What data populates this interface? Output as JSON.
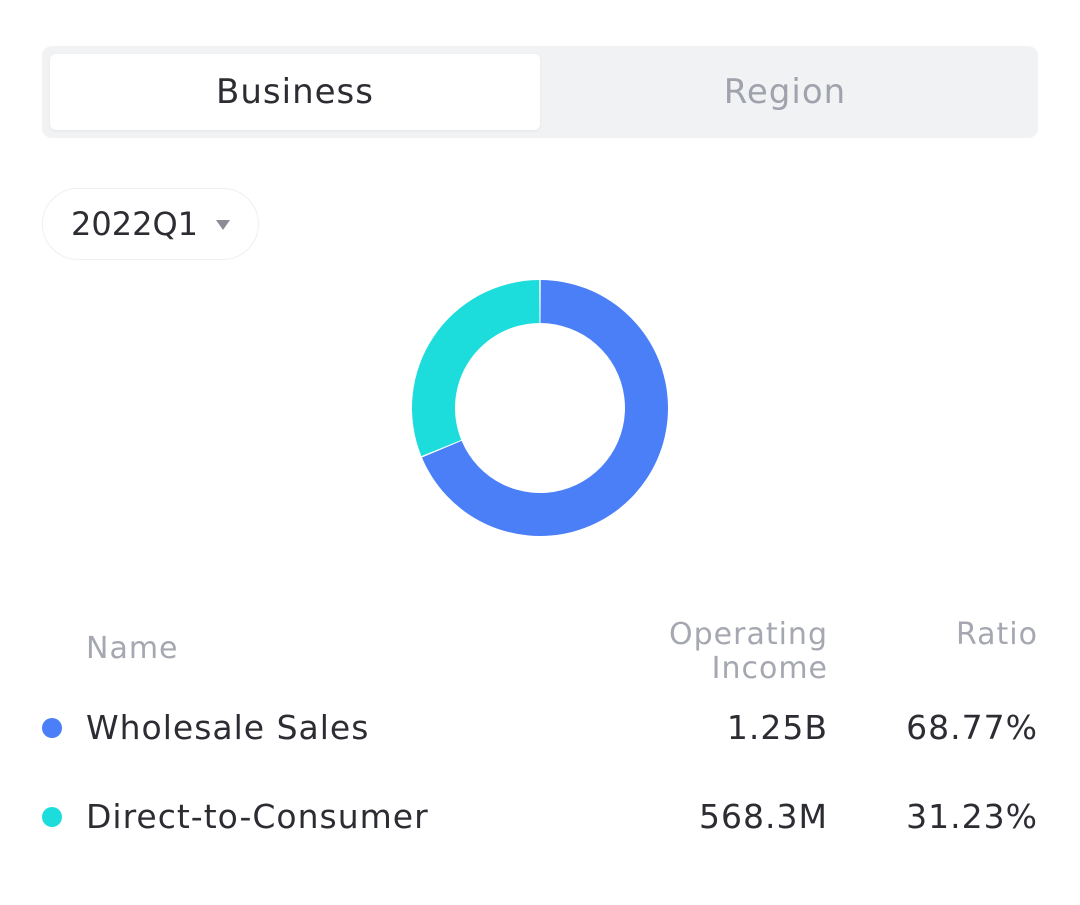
{
  "tabs": [
    {
      "label": "Business",
      "active": true
    },
    {
      "label": "Region",
      "active": false
    }
  ],
  "period": {
    "value": "2022Q1"
  },
  "table": {
    "headers": {
      "name": "Name",
      "income_line1": "Operating",
      "income_line2": "Income",
      "ratio": "Ratio"
    },
    "rows": [
      {
        "name": "Wholesale Sales",
        "income": "1.25B",
        "ratio": "68.77%",
        "color": "#4a7ff7"
      },
      {
        "name": "Direct-to-Consumer",
        "income": "568.3M",
        "ratio": "31.23%",
        "color": "#1ddcdc"
      }
    ]
  },
  "chart_data": {
    "type": "pie",
    "categories": [
      "Wholesale Sales",
      "Direct-to-Consumer"
    ],
    "values": [
      68.77,
      31.23
    ],
    "colors": [
      "#4a7ff7",
      "#1ddcdc"
    ],
    "donut": true
  }
}
